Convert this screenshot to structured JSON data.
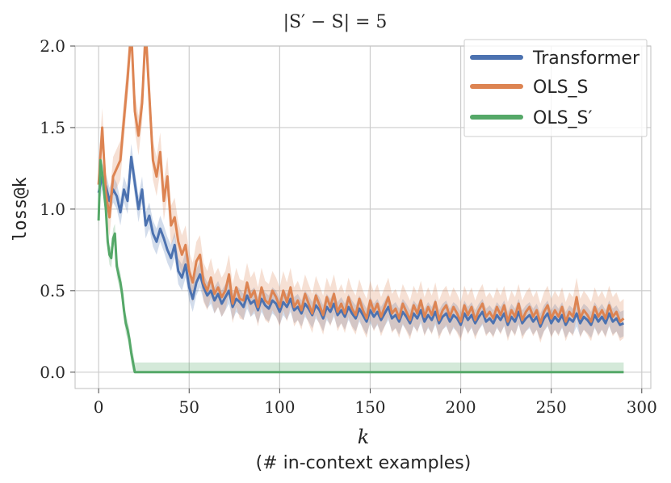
{
  "chart_data": {
    "type": "line",
    "title": "|S′ − S| = 5",
    "xlabel": "k",
    "xlabel_sub": "(# in-context examples)",
    "ylabel": "loss@k",
    "xlim": [
      -13,
      305
    ],
    "ylim": [
      -0.1,
      2.0
    ],
    "xticks": [
      0,
      50,
      100,
      150,
      200,
      250,
      300
    ],
    "yticks": [
      0.0,
      0.5,
      1.0,
      1.5,
      2.0
    ],
    "xtick_labels": [
      "0",
      "50",
      "100",
      "150",
      "200",
      "250",
      "300"
    ],
    "ytick_labels": [
      "0.0",
      "0.5",
      "1.0",
      "1.5",
      "2.0"
    ],
    "grid": true,
    "legend_position": "top-right",
    "series": [
      {
        "name": "Transformer",
        "color": "#4C72B0",
        "band": 0.08,
        "points": [
          [
            0,
            1.1
          ],
          [
            2,
            1.2
          ],
          [
            4,
            1.14
          ],
          [
            6,
            1.05
          ],
          [
            8,
            1.12
          ],
          [
            10,
            1.08
          ],
          [
            12,
            0.98
          ],
          [
            14,
            1.12
          ],
          [
            16,
            1.05
          ],
          [
            18,
            1.32
          ],
          [
            20,
            1.16
          ],
          [
            22,
            1.0
          ],
          [
            24,
            1.12
          ],
          [
            26,
            0.9
          ],
          [
            28,
            0.96
          ],
          [
            30,
            0.85
          ],
          [
            32,
            0.8
          ],
          [
            34,
            0.88
          ],
          [
            36,
            0.82
          ],
          [
            38,
            0.75
          ],
          [
            40,
            0.7
          ],
          [
            42,
            0.78
          ],
          [
            44,
            0.62
          ],
          [
            46,
            0.58
          ],
          [
            48,
            0.66
          ],
          [
            50,
            0.52
          ],
          [
            52,
            0.45
          ],
          [
            54,
            0.55
          ],
          [
            56,
            0.6
          ],
          [
            58,
            0.52
          ],
          [
            60,
            0.47
          ],
          [
            62,
            0.5
          ],
          [
            64,
            0.44
          ],
          [
            66,
            0.48
          ],
          [
            68,
            0.42
          ],
          [
            70,
            0.46
          ],
          [
            72,
            0.5
          ],
          [
            74,
            0.4
          ],
          [
            76,
            0.45
          ],
          [
            78,
            0.43
          ],
          [
            80,
            0.4
          ],
          [
            82,
            0.47
          ],
          [
            84,
            0.42
          ],
          [
            86,
            0.44
          ],
          [
            88,
            0.38
          ],
          [
            90,
            0.45
          ],
          [
            92,
            0.41
          ],
          [
            94,
            0.39
          ],
          [
            96,
            0.44
          ],
          [
            98,
            0.42
          ],
          [
            100,
            0.37
          ],
          [
            102,
            0.43
          ],
          [
            104,
            0.4
          ],
          [
            106,
            0.45
          ],
          [
            108,
            0.38
          ],
          [
            110,
            0.4
          ],
          [
            112,
            0.36
          ],
          [
            114,
            0.42
          ],
          [
            116,
            0.39
          ],
          [
            118,
            0.35
          ],
          [
            120,
            0.41
          ],
          [
            122,
            0.38
          ],
          [
            124,
            0.33
          ],
          [
            126,
            0.4
          ],
          [
            128,
            0.37
          ],
          [
            130,
            0.42
          ],
          [
            132,
            0.35
          ],
          [
            134,
            0.38
          ],
          [
            136,
            0.34
          ],
          [
            138,
            0.4
          ],
          [
            140,
            0.36
          ],
          [
            142,
            0.33
          ],
          [
            144,
            0.39
          ],
          [
            146,
            0.35
          ],
          [
            148,
            0.31
          ],
          [
            150,
            0.38
          ],
          [
            152,
            0.34
          ],
          [
            154,
            0.37
          ],
          [
            156,
            0.32
          ],
          [
            158,
            0.36
          ],
          [
            160,
            0.4
          ],
          [
            162,
            0.33
          ],
          [
            164,
            0.35
          ],
          [
            166,
            0.31
          ],
          [
            168,
            0.37
          ],
          [
            170,
            0.34
          ],
          [
            172,
            0.3
          ],
          [
            174,
            0.36
          ],
          [
            176,
            0.33
          ],
          [
            178,
            0.38
          ],
          [
            180,
            0.31
          ],
          [
            182,
            0.35
          ],
          [
            184,
            0.32
          ],
          [
            186,
            0.37
          ],
          [
            188,
            0.3
          ],
          [
            190,
            0.34
          ],
          [
            192,
            0.36
          ],
          [
            194,
            0.31
          ],
          [
            196,
            0.35
          ],
          [
            198,
            0.33
          ],
          [
            200,
            0.29
          ],
          [
            202,
            0.36
          ],
          [
            204,
            0.32
          ],
          [
            206,
            0.35
          ],
          [
            208,
            0.3
          ],
          [
            210,
            0.34
          ],
          [
            212,
            0.37
          ],
          [
            214,
            0.31
          ],
          [
            216,
            0.33
          ],
          [
            218,
            0.3
          ],
          [
            220,
            0.35
          ],
          [
            222,
            0.32
          ],
          [
            224,
            0.36
          ],
          [
            226,
            0.29
          ],
          [
            228,
            0.34
          ],
          [
            230,
            0.31
          ],
          [
            232,
            0.37
          ],
          [
            234,
            0.3
          ],
          [
            236,
            0.33
          ],
          [
            238,
            0.35
          ],
          [
            240,
            0.31
          ],
          [
            242,
            0.34
          ],
          [
            244,
            0.28
          ],
          [
            246,
            0.33
          ],
          [
            248,
            0.36
          ],
          [
            250,
            0.3
          ],
          [
            252,
            0.34
          ],
          [
            254,
            0.31
          ],
          [
            256,
            0.35
          ],
          [
            258,
            0.29
          ],
          [
            260,
            0.33
          ],
          [
            262,
            0.31
          ],
          [
            264,
            0.36
          ],
          [
            266,
            0.3
          ],
          [
            268,
            0.34
          ],
          [
            270,
            0.32
          ],
          [
            272,
            0.29
          ],
          [
            274,
            0.35
          ],
          [
            276,
            0.31
          ],
          [
            278,
            0.34
          ],
          [
            280,
            0.3
          ],
          [
            282,
            0.36
          ],
          [
            284,
            0.31
          ],
          [
            286,
            0.33
          ],
          [
            288,
            0.29
          ],
          [
            290,
            0.3
          ]
        ]
      },
      {
        "name": "OLS_S",
        "color": "#DD8452",
        "band": 0.12,
        "points": [
          [
            0,
            1.15
          ],
          [
            2,
            1.5
          ],
          [
            4,
            1.1
          ],
          [
            6,
            0.95
          ],
          [
            8,
            1.2
          ],
          [
            10,
            1.25
          ],
          [
            12,
            1.3
          ],
          [
            14,
            1.55
          ],
          [
            16,
            1.8
          ],
          [
            18,
            2.1
          ],
          [
            20,
            1.6
          ],
          [
            22,
            1.45
          ],
          [
            24,
            1.65
          ],
          [
            26,
            2.1
          ],
          [
            28,
            1.7
          ],
          [
            30,
            1.3
          ],
          [
            32,
            1.2
          ],
          [
            34,
            1.35
          ],
          [
            36,
            1.05
          ],
          [
            38,
            1.2
          ],
          [
            40,
            0.9
          ],
          [
            42,
            0.95
          ],
          [
            44,
            0.8
          ],
          [
            46,
            0.72
          ],
          [
            48,
            0.78
          ],
          [
            50,
            0.62
          ],
          [
            52,
            0.55
          ],
          [
            54,
            0.68
          ],
          [
            56,
            0.72
          ],
          [
            58,
            0.55
          ],
          [
            60,
            0.5
          ],
          [
            62,
            0.58
          ],
          [
            64,
            0.48
          ],
          [
            66,
            0.52
          ],
          [
            68,
            0.46
          ],
          [
            70,
            0.5
          ],
          [
            72,
            0.6
          ],
          [
            74,
            0.42
          ],
          [
            76,
            0.52
          ],
          [
            78,
            0.45
          ],
          [
            80,
            0.44
          ],
          [
            82,
            0.55
          ],
          [
            84,
            0.46
          ],
          [
            86,
            0.5
          ],
          [
            88,
            0.4
          ],
          [
            90,
            0.52
          ],
          [
            92,
            0.44
          ],
          [
            94,
            0.42
          ],
          [
            96,
            0.5
          ],
          [
            98,
            0.46
          ],
          [
            100,
            0.4
          ],
          [
            102,
            0.5
          ],
          [
            104,
            0.43
          ],
          [
            106,
            0.52
          ],
          [
            108,
            0.4
          ],
          [
            110,
            0.44
          ],
          [
            112,
            0.38
          ],
          [
            114,
            0.48
          ],
          [
            116,
            0.42
          ],
          [
            118,
            0.36
          ],
          [
            120,
            0.47
          ],
          [
            122,
            0.41
          ],
          [
            124,
            0.35
          ],
          [
            126,
            0.46
          ],
          [
            128,
            0.4
          ],
          [
            130,
            0.48
          ],
          [
            132,
            0.37
          ],
          [
            134,
            0.42
          ],
          [
            136,
            0.36
          ],
          [
            138,
            0.46
          ],
          [
            140,
            0.39
          ],
          [
            142,
            0.35
          ],
          [
            144,
            0.45
          ],
          [
            146,
            0.38
          ],
          [
            148,
            0.33
          ],
          [
            150,
            0.44
          ],
          [
            152,
            0.37
          ],
          [
            154,
            0.42
          ],
          [
            156,
            0.34
          ],
          [
            158,
            0.4
          ],
          [
            160,
            0.46
          ],
          [
            162,
            0.36
          ],
          [
            164,
            0.39
          ],
          [
            166,
            0.33
          ],
          [
            168,
            0.42
          ],
          [
            170,
            0.37
          ],
          [
            172,
            0.32
          ],
          [
            174,
            0.41
          ],
          [
            176,
            0.36
          ],
          [
            178,
            0.44
          ],
          [
            180,
            0.34
          ],
          [
            182,
            0.4
          ],
          [
            184,
            0.35
          ],
          [
            186,
            0.43
          ],
          [
            188,
            0.32
          ],
          [
            190,
            0.38
          ],
          [
            192,
            0.41
          ],
          [
            194,
            0.34
          ],
          [
            196,
            0.4
          ],
          [
            198,
            0.36
          ],
          [
            200,
            0.31
          ],
          [
            202,
            0.41
          ],
          [
            204,
            0.35
          ],
          [
            206,
            0.4
          ],
          [
            208,
            0.32
          ],
          [
            210,
            0.38
          ],
          [
            212,
            0.42
          ],
          [
            214,
            0.34
          ],
          [
            216,
            0.37
          ],
          [
            218,
            0.33
          ],
          [
            220,
            0.4
          ],
          [
            222,
            0.35
          ],
          [
            224,
            0.41
          ],
          [
            226,
            0.31
          ],
          [
            228,
            0.38
          ],
          [
            230,
            0.34
          ],
          [
            232,
            0.42
          ],
          [
            234,
            0.32
          ],
          [
            236,
            0.37
          ],
          [
            238,
            0.4
          ],
          [
            240,
            0.34
          ],
          [
            242,
            0.38
          ],
          [
            244,
            0.3
          ],
          [
            246,
            0.37
          ],
          [
            248,
            0.41
          ],
          [
            250,
            0.33
          ],
          [
            252,
            0.38
          ],
          [
            254,
            0.34
          ],
          [
            256,
            0.4
          ],
          [
            258,
            0.31
          ],
          [
            260,
            0.37
          ],
          [
            262,
            0.34
          ],
          [
            264,
            0.46
          ],
          [
            266,
            0.33
          ],
          [
            268,
            0.38
          ],
          [
            270,
            0.35
          ],
          [
            272,
            0.31
          ],
          [
            274,
            0.4
          ],
          [
            276,
            0.34
          ],
          [
            278,
            0.38
          ],
          [
            280,
            0.33
          ],
          [
            282,
            0.41
          ],
          [
            284,
            0.34
          ],
          [
            286,
            0.37
          ],
          [
            288,
            0.31
          ],
          [
            290,
            0.33
          ]
        ]
      },
      {
        "name": "OLS_S′",
        "color": "#55A868",
        "band": 0.06,
        "points": [
          [
            0,
            0.93
          ],
          [
            1,
            1.3
          ],
          [
            2,
            1.22
          ],
          [
            3,
            1.1
          ],
          [
            4,
            1.0
          ],
          [
            5,
            0.8
          ],
          [
            6,
            0.72
          ],
          [
            7,
            0.7
          ],
          [
            8,
            0.82
          ],
          [
            9,
            0.85
          ],
          [
            10,
            0.65
          ],
          [
            11,
            0.6
          ],
          [
            12,
            0.55
          ],
          [
            13,
            0.48
          ],
          [
            14,
            0.38
          ],
          [
            15,
            0.3
          ],
          [
            16,
            0.26
          ],
          [
            17,
            0.2
          ],
          [
            18,
            0.12
          ],
          [
            19,
            0.06
          ],
          [
            20,
            0.0
          ],
          [
            290,
            0.0
          ]
        ]
      }
    ]
  }
}
